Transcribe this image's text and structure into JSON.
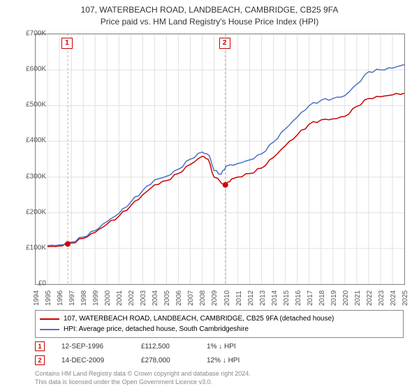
{
  "title_line1": "107, WATERBEACH ROAD, LANDBEACH, CAMBRIDGE, CB25 9FA",
  "title_line2": "Price paid vs. HM Land Registry's House Price Index (HPI)",
  "chart": {
    "type": "line",
    "background_color": "#ffffff",
    "grid_color": "#e0e0e0",
    "axis_color": "#888888",
    "ylim": [
      0,
      700000
    ],
    "ytick_step": 100000,
    "ytick_labels": [
      "£0",
      "£100K",
      "£200K",
      "£300K",
      "£400K",
      "£500K",
      "£600K",
      "£700K"
    ],
    "xlim": [
      1994,
      2025
    ],
    "xtick_step": 1,
    "xtick_labels": [
      "1994",
      "1995",
      "1996",
      "1997",
      "1998",
      "1999",
      "2000",
      "2001",
      "2002",
      "2003",
      "2004",
      "2005",
      "2006",
      "2007",
      "2008",
      "2009",
      "2010",
      "2011",
      "2012",
      "2013",
      "2014",
      "2015",
      "2016",
      "2017",
      "2018",
      "2019",
      "2020",
      "2021",
      "2022",
      "2023",
      "2024",
      "2025"
    ],
    "series": [
      {
        "name": "property",
        "label": "107, WATERBEACH ROAD, LANDBEACH, CAMBRIDGE, CB25 9FA (detached house)",
        "color": "#cc0000",
        "line_width": 1.5,
        "data": [
          [
            1995.0,
            105000
          ],
          [
            1996.0,
            107000
          ],
          [
            1996.7,
            112500
          ],
          [
            1997.0,
            115000
          ],
          [
            1998.0,
            128000
          ],
          [
            1999.0,
            145000
          ],
          [
            2000.0,
            168000
          ],
          [
            2001.0,
            190000
          ],
          [
            2002.0,
            220000
          ],
          [
            2003.0,
            250000
          ],
          [
            2004.0,
            278000
          ],
          [
            2005.0,
            290000
          ],
          [
            2006.0,
            310000
          ],
          [
            2007.0,
            335000
          ],
          [
            2008.0,
            358000
          ],
          [
            2008.5,
            350000
          ],
          [
            2009.0,
            300000
          ],
          [
            2009.95,
            278000
          ],
          [
            2010.5,
            295000
          ],
          [
            2011.0,
            300000
          ],
          [
            2012.0,
            310000
          ],
          [
            2013.0,
            325000
          ],
          [
            2014.0,
            355000
          ],
          [
            2015.0,
            388000
          ],
          [
            2016.0,
            418000
          ],
          [
            2017.0,
            448000
          ],
          [
            2018.0,
            460000
          ],
          [
            2019.0,
            463000
          ],
          [
            2020.0,
            470000
          ],
          [
            2021.0,
            498000
          ],
          [
            2022.0,
            520000
          ],
          [
            2023.0,
            525000
          ],
          [
            2024.0,
            530000
          ],
          [
            2025.0,
            535000
          ]
        ]
      },
      {
        "name": "hpi",
        "label": "HPI: Average price, detached house, South Cambridgeshire",
        "color": "#4a72c4",
        "line_width": 1.5,
        "data": [
          [
            1995.0,
            108000
          ],
          [
            1996.0,
            110000
          ],
          [
            1997.0,
            118000
          ],
          [
            1998.0,
            132000
          ],
          [
            1999.0,
            150000
          ],
          [
            2000.0,
            175000
          ],
          [
            2001.0,
            198000
          ],
          [
            2002.0,
            230000
          ],
          [
            2003.0,
            262000
          ],
          [
            2004.0,
            292000
          ],
          [
            2005.0,
            302000
          ],
          [
            2006.0,
            322000
          ],
          [
            2007.0,
            350000
          ],
          [
            2008.0,
            370000
          ],
          [
            2008.6,
            360000
          ],
          [
            2009.0,
            318000
          ],
          [
            2009.6,
            308000
          ],
          [
            2010.0,
            330000
          ],
          [
            2011.0,
            338000
          ],
          [
            2012.0,
            348000
          ],
          [
            2013.0,
            365000
          ],
          [
            2014.0,
            398000
          ],
          [
            2015.0,
            435000
          ],
          [
            2016.0,
            468000
          ],
          [
            2017.0,
            500000
          ],
          [
            2018.0,
            515000
          ],
          [
            2019.0,
            520000
          ],
          [
            2020.0,
            528000
          ],
          [
            2021.0,
            560000
          ],
          [
            2022.0,
            595000
          ],
          [
            2023.0,
            600000
          ],
          [
            2024.0,
            605000
          ],
          [
            2025.0,
            615000
          ]
        ]
      }
    ],
    "transaction_markers": [
      {
        "n": "1",
        "x": 1996.7,
        "y": 112500,
        "vline_x": 1996.7,
        "dashed_color": "#e69999"
      },
      {
        "n": "2",
        "x": 2009.95,
        "y": 278000,
        "vline_x": 2009.95,
        "dashed_color": "#e69999"
      }
    ],
    "marker_dot_color": "#cc0000"
  },
  "legend": {
    "rows": [
      {
        "color": "#cc0000",
        "text": "107, WATERBEACH ROAD, LANDBEACH, CAMBRIDGE, CB25 9FA (detached house)"
      },
      {
        "color": "#4a72c4",
        "text": "HPI: Average price, detached house, South Cambridgeshire"
      }
    ]
  },
  "transactions": [
    {
      "n": "1",
      "date": "12-SEP-1996",
      "price": "£112,500",
      "pct": "1% ↓ HPI"
    },
    {
      "n": "2",
      "date": "14-DEC-2009",
      "price": "£278,000",
      "pct": "12% ↓ HPI"
    }
  ],
  "footer_line1": "Contains HM Land Registry data © Crown copyright and database right 2024.",
  "footer_line2": "This data is licensed under the Open Government Licence v3.0."
}
